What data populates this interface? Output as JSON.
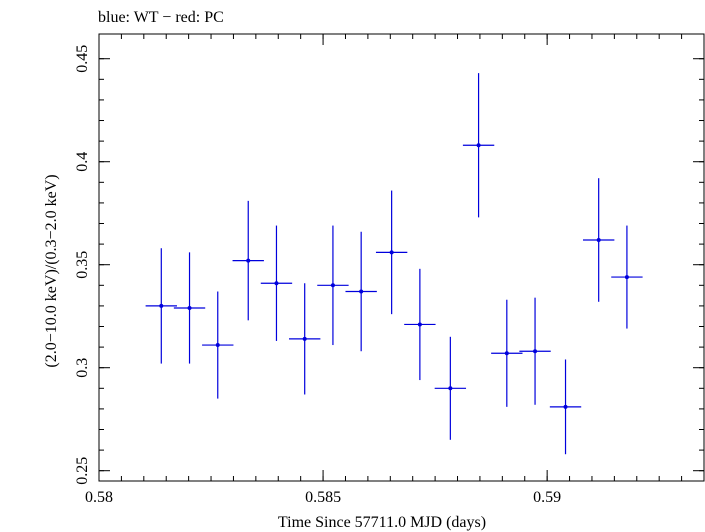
{
  "chart_data": {
    "type": "scatter",
    "title": "blue: WT − red: PC",
    "xlabel": "Time Since 57711.0 MJD (days)",
    "ylabel": "(2.0−10.0 keV)/(0.3−2.0 keV)",
    "xlim": [
      0.58,
      0.5935
    ],
    "ylim": [
      0.245,
      0.462
    ],
    "x_ticks": [
      {
        "value": 0.58,
        "label": "0.58"
      },
      {
        "value": 0.585,
        "label": "0.585"
      },
      {
        "value": 0.59,
        "label": "0.59"
      }
    ],
    "y_ticks": [
      {
        "value": 0.25,
        "label": "0.25"
      },
      {
        "value": 0.3,
        "label": "0.3"
      },
      {
        "value": 0.35,
        "label": "0.35"
      },
      {
        "value": 0.4,
        "label": "0.4"
      },
      {
        "value": 0.45,
        "label": "0.45"
      }
    ],
    "grid": false,
    "series": [
      {
        "color": "#0000dd",
        "points": [
          {
            "x": 0.58139,
            "xerr": 0.00035,
            "y": 0.33,
            "yerr": 0.028
          },
          {
            "x": 0.58202,
            "xerr": 0.00035,
            "y": 0.329,
            "yerr": 0.027
          },
          {
            "x": 0.58265,
            "xerr": 0.00035,
            "y": 0.311,
            "yerr": 0.026
          },
          {
            "x": 0.58333,
            "xerr": 0.00035,
            "y": 0.352,
            "yerr": 0.029
          },
          {
            "x": 0.58396,
            "xerr": 0.00035,
            "y": 0.341,
            "yerr": 0.028
          },
          {
            "x": 0.58459,
            "xerr": 0.00035,
            "y": 0.314,
            "yerr": 0.027
          },
          {
            "x": 0.58522,
            "xerr": 0.00035,
            "y": 0.34,
            "yerr": 0.029
          },
          {
            "x": 0.58585,
            "xerr": 0.00035,
            "y": 0.337,
            "yerr": 0.029
          },
          {
            "x": 0.58653,
            "xerr": 0.00035,
            "y": 0.356,
            "yerr": 0.03
          },
          {
            "x": 0.58716,
            "xerr": 0.00035,
            "y": 0.321,
            "yerr": 0.027
          },
          {
            "x": 0.58784,
            "xerr": 0.00035,
            "y": 0.29,
            "yerr": 0.025
          },
          {
            "x": 0.58847,
            "xerr": 0.00035,
            "y": 0.408,
            "yerr": 0.035
          },
          {
            "x": 0.5891,
            "xerr": 0.00035,
            "y": 0.307,
            "yerr": 0.026
          },
          {
            "x": 0.58973,
            "xerr": 0.00035,
            "y": 0.308,
            "yerr": 0.026
          },
          {
            "x": 0.59041,
            "xerr": 0.00035,
            "y": 0.281,
            "yerr": 0.023
          },
          {
            "x": 0.59115,
            "xerr": 0.00035,
            "y": 0.362,
            "yerr": 0.03
          },
          {
            "x": 0.59178,
            "xerr": 0.00035,
            "y": 0.344,
            "yerr": 0.025
          }
        ]
      }
    ]
  }
}
